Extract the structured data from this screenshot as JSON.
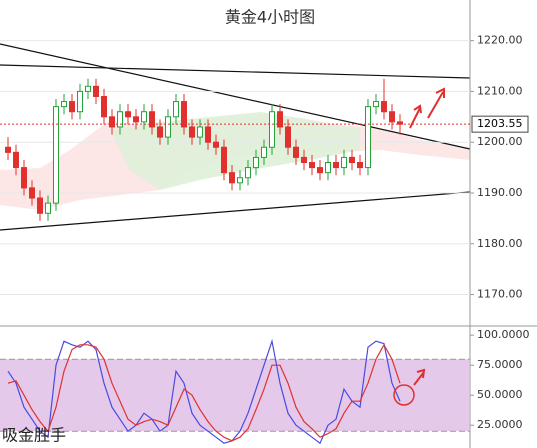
{
  "chart_data": [
    {
      "type": "candlestick",
      "title": "黄金4小时图",
      "open": [
        1199,
        1198,
        1195,
        1191,
        1189,
        1186,
        1188,
        1207,
        1208,
        1206,
        1210,
        1211,
        1209,
        1205,
        1203,
        1206,
        1205,
        1204,
        1206,
        1203,
        1201,
        1205,
        1208,
        1203,
        1201,
        1203,
        1200,
        1199,
        1194,
        1192,
        1193,
        1195,
        1197,
        1199,
        1206,
        1203,
        1199,
        1197,
        1196,
        1195,
        1194,
        1196,
        1195,
        1197,
        1196,
        1195,
        1207,
        1208,
        1206,
        1204
      ],
      "high": [
        1201,
        1199.5,
        1196.5,
        1192.5,
        1190.5,
        1189.5,
        1208.5,
        1209.5,
        1209.5,
        1211.5,
        1212.5,
        1212.5,
        1210.5,
        1206.5,
        1207.5,
        1207.5,
        1206.5,
        1207.5,
        1207.5,
        1204.5,
        1206.5,
        1209.5,
        1209.5,
        1204.5,
        1204.5,
        1204.5,
        1201.5,
        1200.5,
        1195.5,
        1194.5,
        1196.5,
        1198.5,
        1200.5,
        1207.5,
        1207.5,
        1204.5,
        1200.5,
        1198.5,
        1197.5,
        1196.5,
        1197.5,
        1197.5,
        1198.5,
        1198.5,
        1197.5,
        1208.5,
        1209.5,
        1212.5,
        1207.5,
        1205.5
      ],
      "low": [
        1196.5,
        1193.5,
        1189.5,
        1187.5,
        1184.5,
        1184.5,
        1186.5,
        1205.5,
        1204.5,
        1204.5,
        1208.5,
        1207.5,
        1203.5,
        1201.5,
        1201.5,
        1203.5,
        1202.5,
        1202.5,
        1201.5,
        1199.5,
        1199.5,
        1203.5,
        1201.5,
        1199.5,
        1199.5,
        1198.5,
        1197.5,
        1192.5,
        1190.5,
        1190.5,
        1191.5,
        1193.5,
        1195.5,
        1197.5,
        1201.5,
        1197.5,
        1195.5,
        1194.5,
        1193.5,
        1192.5,
        1192.5,
        1193.5,
        1193.5,
        1194.5,
        1193.5,
        1193.5,
        1205.5,
        1204.5,
        1202.5,
        1201.5
      ],
      "close": [
        1198,
        1195,
        1191,
        1189,
        1186,
        1188,
        1207,
        1208,
        1206,
        1210,
        1211,
        1209,
        1205,
        1203,
        1206,
        1205,
        1204,
        1206,
        1203,
        1201,
        1205,
        1208,
        1203,
        1201,
        1203,
        1200,
        1199,
        1194,
        1192,
        1193,
        1195,
        1197,
        1199,
        1206,
        1203,
        1199,
        1197,
        1196,
        1195,
        1194,
        1196,
        1195,
        1197,
        1196,
        1195,
        1207,
        1208,
        1206,
        1204,
        1203.55
      ],
      "up_color": "#26a23a",
      "down_color": "#e0312f",
      "last_price": {
        "value": 1203.55,
        "label": "1203.55"
      },
      "ylim": [
        1164,
        1228
      ],
      "yticks": [
        {
          "value": 1170,
          "label": "1170.00"
        },
        {
          "value": 1180,
          "label": "1180.00"
        },
        {
          "value": 1190,
          "label": "1190.00"
        },
        {
          "value": 1200,
          "label": "1200.00"
        },
        {
          "value": 1210,
          "label": "1210.00"
        },
        {
          "value": 1220,
          "label": "1220.00"
        }
      ]
    },
    {
      "type": "line",
      "series": [
        {
          "color": "#4a4ae0",
          "values": [
            70,
            60,
            40,
            30,
            20,
            15,
            75,
            95,
            92,
            90,
            95,
            88,
            60,
            40,
            30,
            20,
            25,
            35,
            30,
            20,
            25,
            70,
            60,
            35,
            25,
            20,
            15,
            10,
            12,
            20,
            35,
            55,
            75,
            95,
            60,
            35,
            25,
            20,
            15,
            10,
            25,
            30,
            55,
            45,
            40,
            90,
            95,
            93,
            60,
            45
          ]
        },
        {
          "color": "#e0312f",
          "values": [
            60,
            62,
            50,
            38,
            28,
            20,
            40,
            70,
            88,
            92,
            92,
            90,
            80,
            60,
            45,
            30,
            25,
            28,
            30,
            28,
            25,
            40,
            55,
            50,
            38,
            28,
            20,
            15,
            12,
            15,
            22,
            38,
            55,
            75,
            75,
            60,
            40,
            28,
            22,
            15,
            18,
            22,
            35,
            45,
            45,
            60,
            80,
            92,
            80,
            60
          ]
        }
      ],
      "band": [
        20,
        80
      ],
      "ylim": [
        6,
        106
      ],
      "yticks": [
        {
          "value": 25,
          "label": "25.0000"
        },
        {
          "value": 50,
          "label": "50.0000"
        },
        {
          "value": 75,
          "label": "75.0000"
        },
        {
          "value": 100,
          "label": "100.0000"
        }
      ]
    }
  ],
  "watermark": "吸金胜手"
}
